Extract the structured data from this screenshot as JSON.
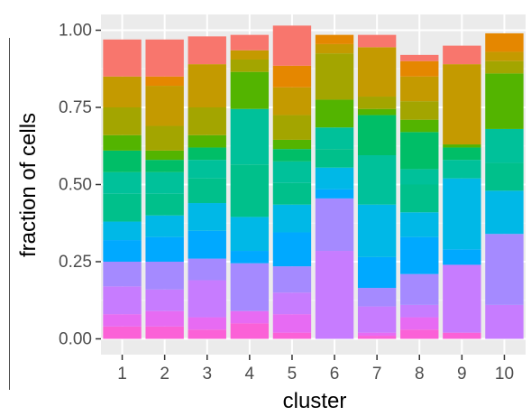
{
  "chart_data": {
    "type": "bar",
    "stacked": true,
    "xlabel": "cluster",
    "ylabel": "fraction of cells",
    "categories": [
      "1",
      "2",
      "3",
      "4",
      "5",
      "6",
      "7",
      "8",
      "9",
      "10"
    ],
    "ylim": [
      0,
      1
    ],
    "yticks": [
      "0.00",
      "0.25",
      "0.50",
      "0.75",
      "1.00"
    ],
    "grid": true,
    "legend": "none",
    "layer_colors": [
      "#FB61D7",
      "#E76BF3",
      "#C77CFF",
      "#A58AFF",
      "#00A9FF",
      "#00B8E7",
      "#00C08B",
      "#00C19A",
      "#00BE67",
      "#53B400",
      "#A3A500",
      "#C49A00",
      "#E58700",
      "#F8766D"
    ],
    "series": [
      {
        "values": [
          0.04,
          0.04,
          0.03,
          0.05,
          0.02,
          0.0,
          0.01,
          0.03,
          0.02,
          0.0
        ]
      },
      {
        "values": [
          0.04,
          0.05,
          0.04,
          0.04,
          0.06,
          0.0,
          0.01,
          0.04,
          0.0,
          0.0
        ]
      },
      {
        "values": [
          0.09,
          0.07,
          0.12,
          0.0,
          0.07,
          0.285,
          0.085,
          0.04,
          0.22,
          0.11
        ]
      },
      {
        "values": [
          0.08,
          0.09,
          0.07,
          0.155,
          0.085,
          0.17,
          0.06,
          0.1,
          0.0,
          0.23
        ]
      },
      {
        "values": [
          0.07,
          0.08,
          0.09,
          0.04,
          0.11,
          0.03,
          0.1,
          0.12,
          0.05,
          0.0
        ]
      },
      {
        "values": [
          0.06,
          0.07,
          0.09,
          0.11,
          0.09,
          0.07,
          0.17,
          0.08,
          0.23,
          0.14
        ]
      },
      {
        "values": [
          0.09,
          0.07,
          0.08,
          0.17,
          0.07,
          0.06,
          0.0,
          0.09,
          0.0,
          0.09
        ]
      },
      {
        "values": [
          0.07,
          0.07,
          0.06,
          0.18,
          0.07,
          0.07,
          0.16,
          0.05,
          0.06,
          0.11
        ]
      },
      {
        "values": [
          0.07,
          0.04,
          0.04,
          0.0,
          0.04,
          0.0,
          0.13,
          0.12,
          0.04,
          0.0
        ]
      },
      {
        "values": [
          0.05,
          0.03,
          0.04,
          0.12,
          0.03,
          0.09,
          0.02,
          0.04,
          0.01,
          0.18
        ]
      },
      {
        "values": [
          0.09,
          0.08,
          0.09,
          0.04,
          0.08,
          0.15,
          0.04,
          0.06,
          0.0,
          0.04
        ]
      },
      {
        "values": [
          0.1,
          0.13,
          0.14,
          0.03,
          0.09,
          0.03,
          0.16,
          0.08,
          0.26,
          0.03
        ]
      },
      {
        "values": [
          0.0,
          0.03,
          0.0,
          0.0,
          0.07,
          0.03,
          0.0,
          0.05,
          0.0,
          0.06
        ]
      },
      {
        "values": [
          0.12,
          0.12,
          0.09,
          0.05,
          0.13,
          0.0,
          0.04,
          0.02,
          0.06,
          0.0
        ]
      }
    ]
  }
}
